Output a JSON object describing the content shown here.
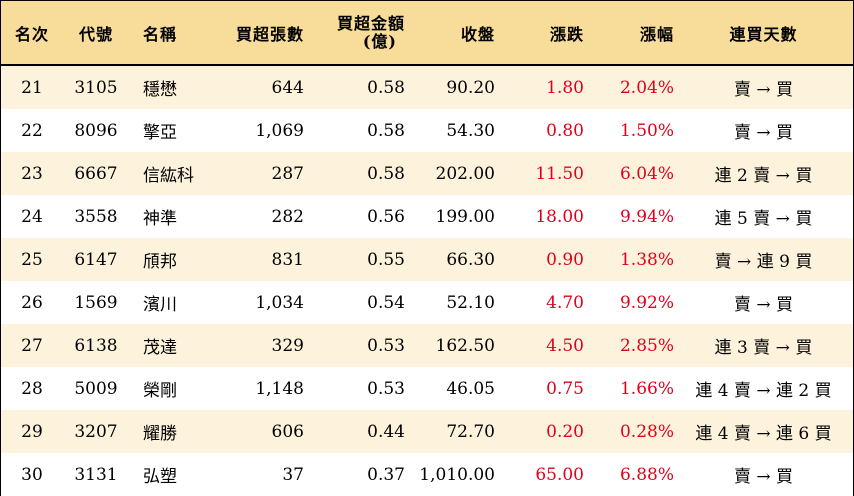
{
  "headers": {
    "rank": "名次",
    "code": "代號",
    "name": "名稱",
    "net_lots": "買超張數",
    "amount_line1": "買超金額",
    "amount_line2": "(億)",
    "close": "收盤",
    "change": "漲跌",
    "pct": "漲幅",
    "days": "連買天數"
  },
  "colors": {
    "header_bg": "#f8dc9a",
    "stripe_bg": "#fdf3dc",
    "positive": "#e0001b"
  },
  "rows": [
    {
      "rank": "21",
      "code": "3105",
      "name": "穩懋",
      "net_lots": "644",
      "amount": "0.58",
      "close": "90.20",
      "change": "1.80",
      "pct": "2.04%",
      "days": "賣 → 買"
    },
    {
      "rank": "22",
      "code": "8096",
      "name": "擎亞",
      "net_lots": "1,069",
      "amount": "0.58",
      "close": "54.30",
      "change": "0.80",
      "pct": "1.50%",
      "days": "賣 → 買"
    },
    {
      "rank": "23",
      "code": "6667",
      "name": "信紘科",
      "net_lots": "287",
      "amount": "0.58",
      "close": "202.00",
      "change": "11.50",
      "pct": "6.04%",
      "days": "連 2 賣 → 買"
    },
    {
      "rank": "24",
      "code": "3558",
      "name": "神準",
      "net_lots": "282",
      "amount": "0.56",
      "close": "199.00",
      "change": "18.00",
      "pct": "9.94%",
      "days": "連 5 賣 → 買"
    },
    {
      "rank": "25",
      "code": "6147",
      "name": "頎邦",
      "net_lots": "831",
      "amount": "0.55",
      "close": "66.30",
      "change": "0.90",
      "pct": "1.38%",
      "days": "賣 → 連 9 買"
    },
    {
      "rank": "26",
      "code": "1569",
      "name": "濱川",
      "net_lots": "1,034",
      "amount": "0.54",
      "close": "52.10",
      "change": "4.70",
      "pct": "9.92%",
      "days": "賣 → 買"
    },
    {
      "rank": "27",
      "code": "6138",
      "name": "茂達",
      "net_lots": "329",
      "amount": "0.53",
      "close": "162.50",
      "change": "4.50",
      "pct": "2.85%",
      "days": "連 3 賣 → 買"
    },
    {
      "rank": "28",
      "code": "5009",
      "name": "榮剛",
      "net_lots": "1,148",
      "amount": "0.53",
      "close": "46.05",
      "change": "0.75",
      "pct": "1.66%",
      "days": "連 4 賣 → 連 2 買"
    },
    {
      "rank": "29",
      "code": "3207",
      "name": "耀勝",
      "net_lots": "606",
      "amount": "0.44",
      "close": "72.70",
      "change": "0.20",
      "pct": "0.28%",
      "days": "連 4 賣 → 連 6 買"
    },
    {
      "rank": "30",
      "code": "3131",
      "name": "弘塑",
      "net_lots": "37",
      "amount": "0.37",
      "close": "1,010.00",
      "change": "65.00",
      "pct": "6.88%",
      "days": "賣 → 買"
    }
  ]
}
